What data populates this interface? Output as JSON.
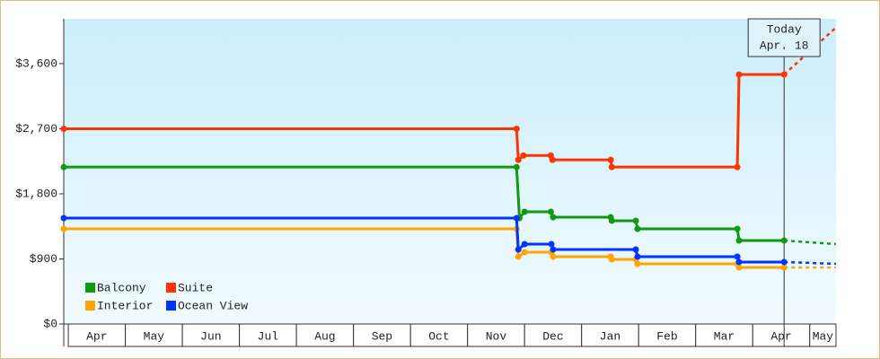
{
  "chart_data": {
    "type": "line",
    "xlim": [
      -0.08,
      13.46
    ],
    "xticks": [
      {
        "value": 0,
        "label": "Apr"
      },
      {
        "value": 1,
        "label": "May"
      },
      {
        "value": 2,
        "label": "Jun"
      },
      {
        "value": 3,
        "label": "Jul"
      },
      {
        "value": 4,
        "label": "Aug"
      },
      {
        "value": 5,
        "label": "Sep"
      },
      {
        "value": 6,
        "label": "Oct"
      },
      {
        "value": 7,
        "label": "Nov"
      },
      {
        "value": 8,
        "label": "Dec"
      },
      {
        "value": 9,
        "label": "Jan"
      },
      {
        "value": 10,
        "label": "Feb"
      },
      {
        "value": 11,
        "label": "Mar"
      },
      {
        "value": 12,
        "label": "Apr"
      },
      {
        "value": 13,
        "label": "May"
      }
    ],
    "ylim": [
      0,
      4220
    ],
    "yticks": [
      {
        "value": 0,
        "label": "$0"
      },
      {
        "value": 900,
        "label": "$900"
      },
      {
        "value": 1800,
        "label": "$1,800"
      },
      {
        "value": 2700,
        "label": "$2,700"
      },
      {
        "value": 3600,
        "label": "$3,600"
      }
    ],
    "legend": "bottom-left",
    "today": {
      "x": 12.55,
      "label": "Today",
      "date": "Apr. 18"
    },
    "series": [
      {
        "name": "Balcony",
        "color": "#119911",
        "x": [
          -0.08,
          7.86,
          7.91,
          8.0,
          8.46,
          8.5,
          9.51,
          9.53,
          9.95,
          9.98,
          11.73,
          11.76,
          12.55,
          13.46
        ],
        "values": [
          2170,
          2170,
          1465,
          1552,
          1552,
          1477,
          1477,
          1428,
          1428,
          1316,
          1316,
          1154,
          1154,
          1105
        ]
      },
      {
        "name": "Suite",
        "color": "#ff3300",
        "x": [
          -0.08,
          7.86,
          7.89,
          7.98,
          8.46,
          8.49,
          9.51,
          9.53,
          11.73,
          11.76,
          12.55,
          13.46
        ],
        "values": [
          2700,
          2700,
          2270,
          2330,
          2330,
          2270,
          2270,
          2170,
          2170,
          3450,
          3450,
          4100
        ]
      },
      {
        "name": "Interior",
        "color": "#ffa500",
        "x": [
          -0.08,
          7.86,
          7.89,
          8.0,
          8.47,
          8.5,
          9.51,
          9.53,
          9.95,
          9.98,
          11.73,
          11.76,
          12.55,
          13.46
        ],
        "values": [
          1316,
          1316,
          931,
          993,
          993,
          931,
          931,
          894,
          894,
          832,
          832,
          782,
          782,
          782
        ]
      },
      {
        "name": "Ocean View",
        "color": "#0033ff",
        "x": [
          -0.08,
          7.86,
          7.89,
          8.0,
          8.47,
          8.5,
          9.95,
          9.98,
          11.73,
          11.76,
          12.55,
          13.46
        ],
        "values": [
          1465,
          1465,
          1030,
          1105,
          1105,
          1030,
          1030,
          931,
          931,
          857,
          857,
          832
        ]
      }
    ]
  }
}
